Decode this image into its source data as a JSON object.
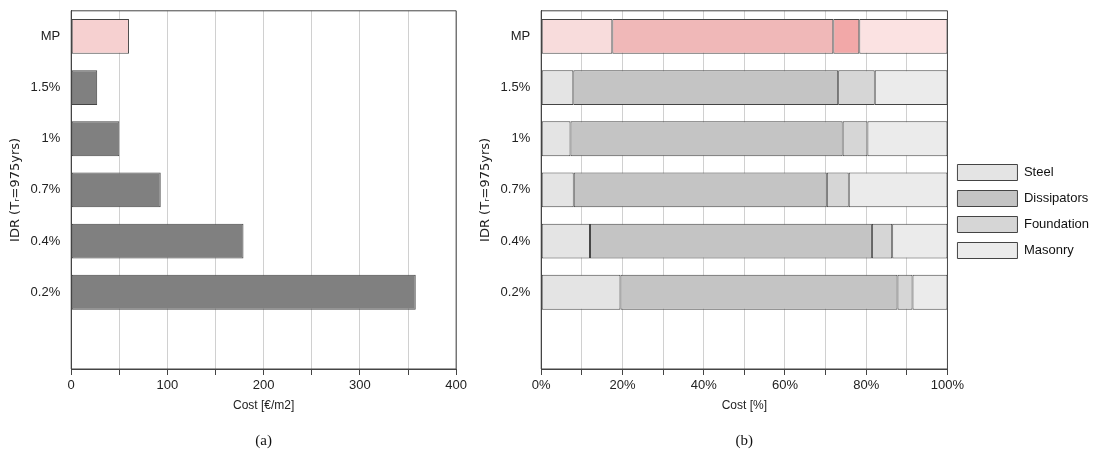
{
  "chart_data": [
    {
      "type": "bar",
      "orientation": "horizontal",
      "categories": [
        "MP",
        "1.5%",
        "1%",
        "0.7%",
        "0.4%",
        "0.2%",
        null
      ],
      "values": [
        60,
        27,
        50,
        93,
        179,
        358,
        null
      ],
      "colors": [
        "#f6d0d0",
        "#808080",
        "#808080",
        "#808080",
        "#808080",
        "#808080",
        "#808080"
      ],
      "xlabel": "Cost [€/m2]",
      "ylabel": "IDR (Tᵣ=975yrs)",
      "xlim": [
        0,
        400
      ],
      "xticks": [
        0,
        {
          "value": 50,
          "label": null
        },
        100,
        {
          "value": 150,
          "label": null
        },
        200,
        {
          "value": 250,
          "label": null
        },
        300,
        {
          "value": 350,
          "label": null
        },
        400
      ],
      "grid": "x",
      "annotations": [
        "(a)"
      ]
    },
    {
      "type": "bar",
      "orientation": "horizontal",
      "stacked": true,
      "categories": [
        "MP",
        "1.5%",
        "1%",
        "0.7%",
        "0.4%",
        "0.2%",
        null
      ],
      "series": [
        {
          "name": "Steel",
          "color": "#e4e4e4",
          "colors": [
            "#f8dcdc",
            "#e4e4e4",
            "#e4e4e4",
            "#e4e4e4",
            "#e4e4e4",
            "#e4e4e4",
            "#e4e4e4"
          ],
          "values": [
            17.5,
            7.9,
            7.2,
            8.0,
            12.0,
            19.5,
            null
          ]
        },
        {
          "name": "Dissipators",
          "color": "#c4c4c4",
          "colors": [
            "#f0b8b8",
            "#c4c4c4",
            "#c4c4c4",
            "#c4c4c4",
            "#c4c4c4",
            "#c4c4c4",
            "#c4c4c4"
          ],
          "values": [
            54.4,
            65.2,
            67.0,
            62.3,
            69.4,
            68.2,
            null
          ]
        },
        {
          "name": "Foundation",
          "color": "#d6d6d6",
          "colors": [
            "#f2a8a8",
            "#d6d6d6",
            "#d6d6d6",
            "#d6d6d6",
            "#d6d6d6",
            "#d6d6d6",
            "#d6d6d6"
          ],
          "values": [
            6.4,
            9.0,
            6.1,
            5.4,
            5.0,
            3.7,
            null
          ]
        },
        {
          "name": "Masonry",
          "color": "#ebebeb",
          "colors": [
            "#fbe2e2",
            "#ebebeb",
            "#ebebeb",
            "#ebebeb",
            "#ebebeb",
            "#ebebeb",
            "#ebebeb"
          ],
          "values": [
            21.7,
            17.9,
            19.7,
            24.3,
            13.6,
            8.6,
            null
          ]
        }
      ],
      "xlabel": "Cost [%]",
      "ylabel": "IDR (Tᵣ=975yrs)",
      "xlim": [
        0,
        100
      ],
      "xticks": [
        {
          "value": 0,
          "label": "0%"
        },
        {
          "value": 10,
          "label": null
        },
        {
          "value": 20,
          "label": "20%"
        },
        {
          "value": 30,
          "label": null
        },
        {
          "value": 40,
          "label": "40%"
        },
        {
          "value": 50,
          "label": null
        },
        {
          "value": 60,
          "label": "60%"
        },
        {
          "value": 70,
          "label": null
        },
        {
          "value": 80,
          "label": "80%"
        },
        {
          "value": 90,
          "label": null
        },
        {
          "value": 100,
          "label": "100%"
        }
      ],
      "grid": "x",
      "legend": "right",
      "annotations": [
        "(b)"
      ]
    }
  ]
}
